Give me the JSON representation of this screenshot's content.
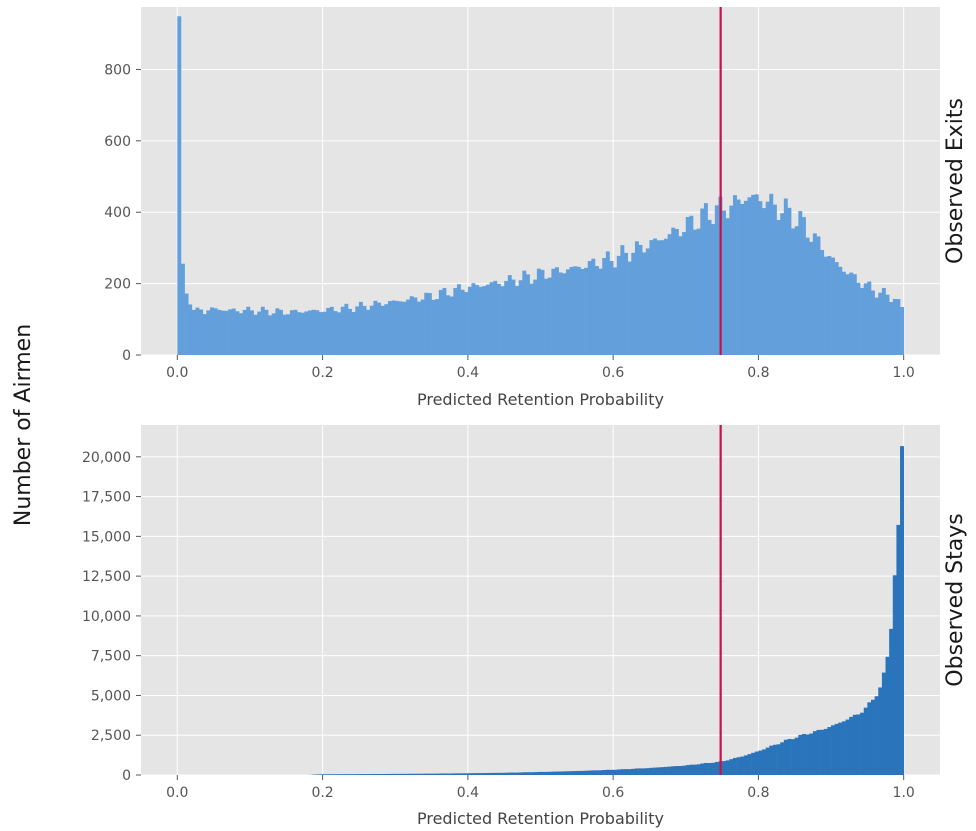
{
  "figure": {
    "ylabel": "Number of Airmen"
  },
  "chart_data": [
    {
      "type": "bar",
      "panel_label": "Observed Exits",
      "xlabel": "Predicted Retention Probability",
      "ylabel": "",
      "xlim": [
        -0.05,
        1.05
      ],
      "ylim": [
        0,
        975
      ],
      "xticks": [
        0.0,
        0.2,
        0.4,
        0.6,
        0.8,
        1.0
      ],
      "xtick_labels": [
        "0.0",
        "0.2",
        "0.4",
        "0.6",
        "0.8",
        "1.0"
      ],
      "yticks": [
        0,
        200,
        400,
        600,
        800
      ],
      "ytick_labels": [
        "0",
        "200",
        "400",
        "600",
        "800"
      ],
      "grid": true,
      "color": "#629fdb",
      "threshold": 0.748,
      "threshold_color": "#c8104a",
      "bin_width": 0.005,
      "bins": [
        [
          0.0,
          930
        ],
        [
          0.005,
          310
        ],
        [
          0.01,
          190
        ],
        [
          0.015,
          160
        ],
        [
          0.02,
          130
        ],
        [
          0.025,
          120
        ],
        [
          0.03,
          140
        ],
        [
          0.035,
          120
        ],
        [
          0.05,
          130
        ],
        [
          0.07,
          125
        ],
        [
          0.1,
          125
        ],
        [
          0.15,
          120
        ],
        [
          0.2,
          125
        ],
        [
          0.25,
          135
        ],
        [
          0.3,
          150
        ],
        [
          0.35,
          165
        ],
        [
          0.4,
          190
        ],
        [
          0.45,
          205
        ],
        [
          0.5,
          225
        ],
        [
          0.55,
          245
        ],
        [
          0.6,
          270
        ],
        [
          0.65,
          310
        ],
        [
          0.7,
          360
        ],
        [
          0.72,
          385
        ],
        [
          0.74,
          405
        ],
        [
          0.76,
          415
        ],
        [
          0.78,
          440
        ],
        [
          0.8,
          440
        ],
        [
          0.82,
          420
        ],
        [
          0.84,
          400
        ],
        [
          0.86,
          370
        ],
        [
          0.88,
          320
        ],
        [
          0.9,
          270
        ],
        [
          0.92,
          235
        ],
        [
          0.94,
          205
        ],
        [
          0.96,
          180
        ],
        [
          0.98,
          165
        ],
        [
          0.99,
          160
        ],
        [
          0.995,
          130
        ]
      ]
    },
    {
      "type": "bar",
      "panel_label": "Observed Stays",
      "xlabel": "Predicted Retention Probability",
      "ylabel": "",
      "xlim": [
        -0.05,
        1.05
      ],
      "ylim": [
        0,
        22000
      ],
      "xticks": [
        0.0,
        0.2,
        0.4,
        0.6,
        0.8,
        1.0
      ],
      "xtick_labels": [
        "0.0",
        "0.2",
        "0.4",
        "0.6",
        "0.8",
        "1.0"
      ],
      "yticks": [
        0,
        2500,
        5000,
        7500,
        10000,
        12500,
        15000,
        17500,
        20000
      ],
      "ytick_labels": [
        "0",
        "2,500",
        "5,000",
        "7,500",
        "10,000",
        "12,500",
        "15,000",
        "17,500",
        "20,000"
      ],
      "grid": true,
      "color": "#2a74bb",
      "threshold": 0.748,
      "threshold_color": "#c8104a",
      "bin_width": 0.005,
      "bins": [
        [
          0.0,
          0
        ],
        [
          0.18,
          0
        ],
        [
          0.19,
          30
        ],
        [
          0.2,
          45
        ],
        [
          0.25,
          55
        ],
        [
          0.3,
          70
        ],
        [
          0.35,
          85
        ],
        [
          0.4,
          110
        ],
        [
          0.45,
          140
        ],
        [
          0.5,
          190
        ],
        [
          0.55,
          250
        ],
        [
          0.6,
          330
        ],
        [
          0.65,
          440
        ],
        [
          0.7,
          600
        ],
        [
          0.75,
          850
        ],
        [
          0.78,
          1200
        ],
        [
          0.8,
          1500
        ],
        [
          0.82,
          1850
        ],
        [
          0.84,
          2200
        ],
        [
          0.86,
          2500
        ],
        [
          0.88,
          2750
        ],
        [
          0.9,
          3050
        ],
        [
          0.92,
          3450
        ],
        [
          0.94,
          3900
        ],
        [
          0.95,
          4300
        ],
        [
          0.96,
          4900
        ],
        [
          0.97,
          5700
        ],
        [
          0.975,
          6800
        ],
        [
          0.98,
          8000
        ],
        [
          0.985,
          10900
        ],
        [
          0.99,
          14400
        ],
        [
          0.995,
          16300
        ],
        [
          0.998,
          21300
        ]
      ]
    }
  ]
}
